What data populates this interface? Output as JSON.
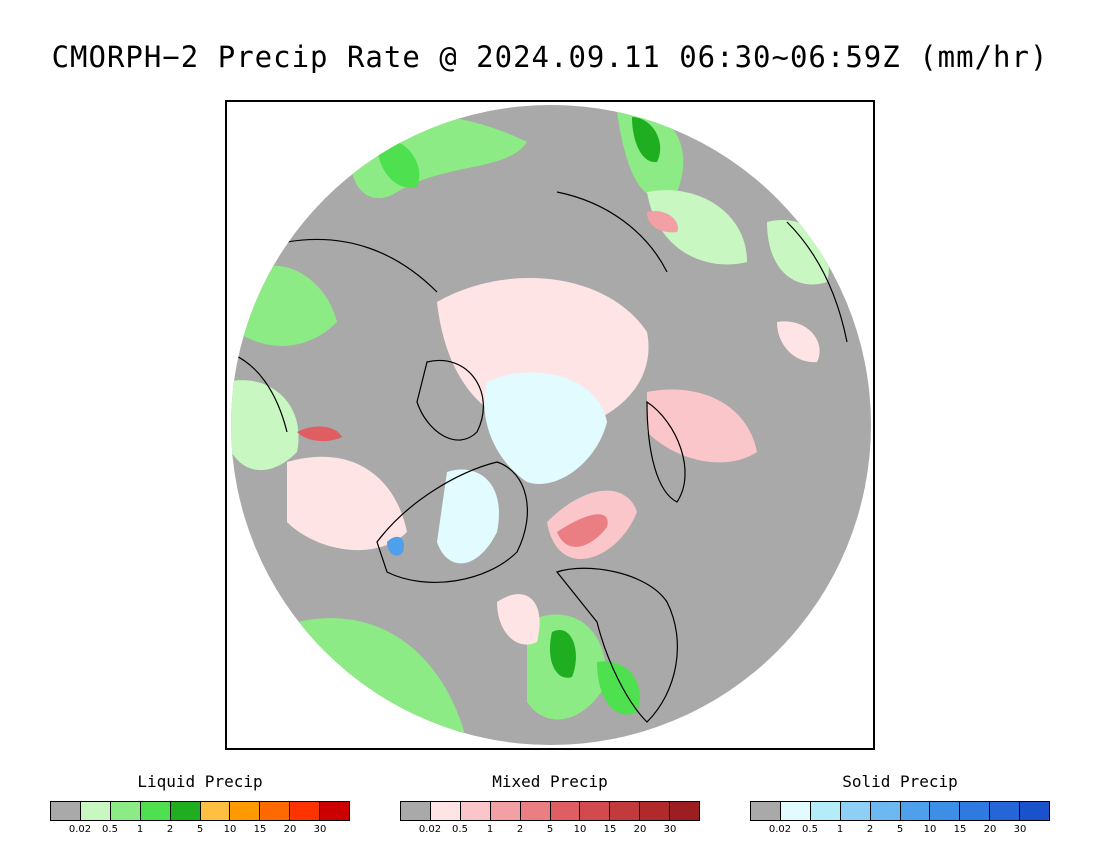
{
  "title": "CMORPH−2 Precip Rate @ 2024.09.11 06:30~06:59Z (mm/hr)",
  "map": {
    "projection": "north-polar-stereographic",
    "background_color": "#a9a9a9",
    "coastline_color": "#000000"
  },
  "legends": [
    {
      "id": "liquid",
      "title": "Liquid Precip",
      "colors": [
        "#a9a9a9",
        "#c8f7c2",
        "#8ceb84",
        "#4ee04e",
        "#1fae1f",
        "#ffbf40",
        "#ff9a00",
        "#ff6a00",
        "#ff3300",
        "#cc0000"
      ],
      "ticks": [
        "0.02",
        "0.5",
        "1",
        "2",
        "5",
        "10",
        "15",
        "20",
        "30"
      ]
    },
    {
      "id": "mixed",
      "title": "Mixed Precip",
      "colors": [
        "#a9a9a9",
        "#ffe4e6",
        "#fbc6ca",
        "#f3a0a4",
        "#ea7e82",
        "#de5e62",
        "#d34a4e",
        "#c23a3c",
        "#b02a2c",
        "#9c1e20"
      ],
      "ticks": [
        "0.02",
        "0.5",
        "1",
        "2",
        "5",
        "10",
        "15",
        "20",
        "30"
      ]
    },
    {
      "id": "solid",
      "title": "Solid Precip",
      "colors": [
        "#a9a9a9",
        "#e2fbff",
        "#b4ecfa",
        "#8ed0f5",
        "#6cb8f1",
        "#4ea0ec",
        "#3c8ee6",
        "#2f7ae0",
        "#2466d8",
        "#1a52cc"
      ],
      "ticks": [
        "0.02",
        "0.5",
        "1",
        "2",
        "5",
        "10",
        "15",
        "20",
        "30"
      ]
    }
  ]
}
